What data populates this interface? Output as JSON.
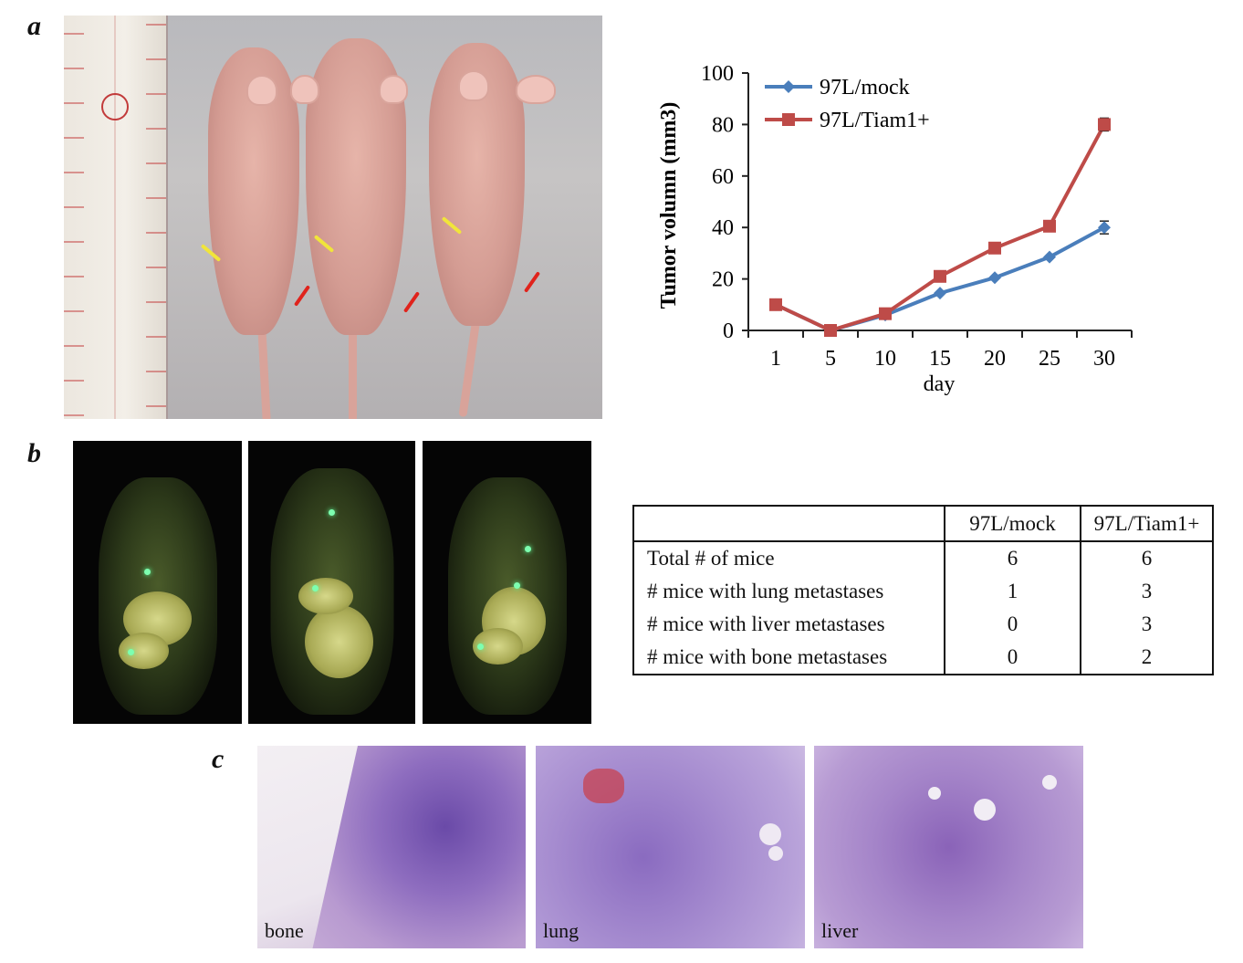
{
  "panels": {
    "a": "a",
    "b": "b",
    "c": "c"
  },
  "chart_data": {
    "type": "line",
    "title": "",
    "xlabel": "day",
    "ylabel": "Tumor volumn (mm3)",
    "categories": [
      "1",
      "5",
      "10",
      "15",
      "20",
      "25",
      "30"
    ],
    "yticks": [
      "0",
      "20",
      "40",
      "60",
      "80",
      "100"
    ],
    "ylim": [
      0,
      100
    ],
    "grid": false,
    "legend_position": "top-left",
    "series": [
      {
        "name": "97L/mock",
        "values": [
          10,
          0,
          6,
          14.5,
          20.5,
          28.5,
          40
        ],
        "color": "#4a7ebb",
        "marker": "diamond"
      },
      {
        "name": "97L/Tiam1+",
        "values": [
          10,
          0,
          6.5,
          21,
          32,
          40.5,
          80
        ],
        "color": "#be4b48",
        "marker": "square"
      }
    ]
  },
  "table": {
    "headers": [
      "",
      "97L/mock",
      "97L/Tiam1+"
    ],
    "rows": [
      [
        "Total # of mice",
        "6",
        "6"
      ],
      [
        "# mice with lung metastases",
        "1",
        "3"
      ],
      [
        "# mice with liver metastases",
        "0",
        "3"
      ],
      [
        "# mice with bone metastases",
        "0",
        "2"
      ]
    ]
  },
  "histology": {
    "labels": [
      "bone",
      "lung",
      "liver"
    ]
  }
}
